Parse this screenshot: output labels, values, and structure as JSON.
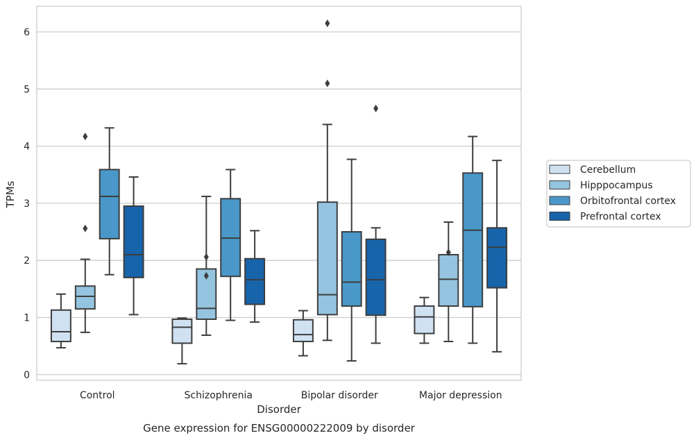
{
  "chart_data": {
    "type": "boxplot",
    "caption": "Gene expression for ENSG00000222009 by disorder",
    "xlabel": "Disorder",
    "ylabel": "TPMs",
    "ylim": [
      -0.1,
      6.45
    ],
    "yticks": [
      0,
      1,
      2,
      3,
      4,
      5,
      6
    ],
    "grid": "horizontal",
    "legend_position": "right",
    "categories": [
      "Control",
      "Schizophrenia",
      "Bipolar disorder",
      "Major depression"
    ],
    "series": [
      {
        "name": "Cerebellum",
        "color": "#d0e1f2",
        "boxes": [
          {
            "whislo": 0.47,
            "q1": 0.58,
            "med": 0.75,
            "q3": 1.13,
            "whishi": 1.41,
            "fliers": []
          },
          {
            "whislo": 0.19,
            "q1": 0.55,
            "med": 0.83,
            "q3": 0.97,
            "whishi": 0.99,
            "fliers": []
          },
          {
            "whislo": 0.33,
            "q1": 0.58,
            "med": 0.7,
            "q3": 0.96,
            "whishi": 1.12,
            "fliers": []
          },
          {
            "whislo": 0.55,
            "q1": 0.72,
            "med": 1.01,
            "q3": 1.2,
            "whishi": 1.35,
            "fliers": []
          }
        ]
      },
      {
        "name": "Hipppocampus",
        "color": "#94c4df",
        "boxes": [
          {
            "whislo": 0.74,
            "q1": 1.15,
            "med": 1.37,
            "q3": 1.55,
            "whishi": 2.02,
            "fliers": [
              2.56,
              4.17
            ]
          },
          {
            "whislo": 0.69,
            "q1": 0.97,
            "med": 1.16,
            "q3": 1.85,
            "whishi": 3.12,
            "fliers": [
              1.73,
              2.06
            ]
          },
          {
            "whislo": 0.6,
            "q1": 1.05,
            "med": 1.4,
            "q3": 3.02,
            "whishi": 4.38,
            "fliers": [
              5.1,
              6.15
            ]
          },
          {
            "whislo": 0.58,
            "q1": 1.2,
            "med": 1.67,
            "q3": 2.1,
            "whishi": 2.67,
            "fliers": [
              2.14
            ]
          }
        ]
      },
      {
        "name": "Orbitofrontal cortex",
        "color": "#4a98c9",
        "boxes": [
          {
            "whislo": 1.75,
            "q1": 2.38,
            "med": 3.12,
            "q3": 3.59,
            "whishi": 4.32,
            "fliers": []
          },
          {
            "whislo": 0.95,
            "q1": 1.72,
            "med": 2.39,
            "q3": 3.08,
            "whishi": 3.59,
            "fliers": []
          },
          {
            "whislo": 0.24,
            "q1": 1.2,
            "med": 1.62,
            "q3": 2.5,
            "whishi": 3.77,
            "fliers": []
          },
          {
            "whislo": 0.55,
            "q1": 1.19,
            "med": 2.53,
            "q3": 3.53,
            "whishi": 4.17,
            "fliers": []
          }
        ]
      },
      {
        "name": "Prefrontal cortex",
        "color": "#1764ab",
        "boxes": [
          {
            "whislo": 1.05,
            "q1": 1.7,
            "med": 2.1,
            "q3": 2.95,
            "whishi": 3.46,
            "fliers": []
          },
          {
            "whislo": 0.92,
            "q1": 1.23,
            "med": 1.66,
            "q3": 2.03,
            "whishi": 2.52,
            "fliers": []
          },
          {
            "whislo": 0.55,
            "q1": 1.04,
            "med": 1.66,
            "q3": 2.37,
            "whishi": 2.57,
            "fliers": [
              4.66
            ]
          },
          {
            "whislo": 0.4,
            "q1": 1.52,
            "med": 2.23,
            "q3": 2.57,
            "whishi": 3.75,
            "fliers": []
          }
        ]
      }
    ]
  }
}
